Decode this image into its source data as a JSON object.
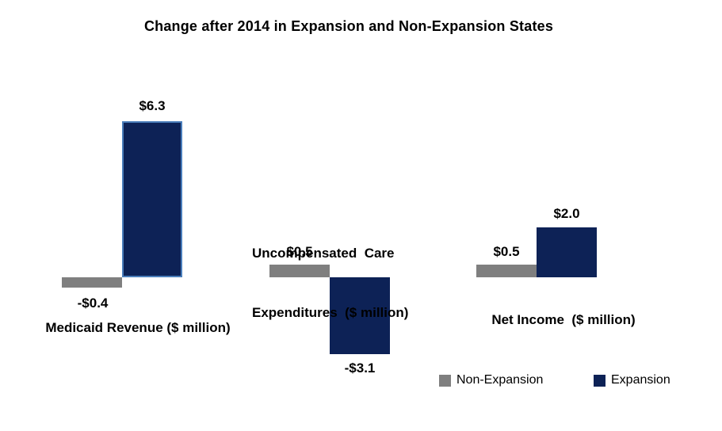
{
  "colors": {
    "background": "#FFFFFF",
    "text": "#000000",
    "non_expansion_gray": "#7F7F7F",
    "expansion_navy": "#0D2256",
    "expansion_bar_outline": "#4A7EBB"
  },
  "chart_data": {
    "type": "bar",
    "title": "Change after 2014 in Expansion and Non-Expansion States",
    "unit": "$ million",
    "baseline": 0,
    "grid": false,
    "axes_visible": false,
    "legend_position": "bottom-right",
    "series_names": [
      "Non-Expansion",
      "Expansion"
    ],
    "groups": [
      {
        "category": "Medicaid Revenue ($ million)",
        "values": [
          -0.4,
          6.3
        ],
        "labels": [
          "-$0.4",
          "$6.3"
        ]
      },
      {
        "category": "Uncompensated Care Expenditures ($ million)",
        "category_line1": "Uncompensated  Care",
        "category_line2": "Expenditures  ($ million)",
        "values": [
          0.5,
          -3.1
        ],
        "labels": [
          "$0.5",
          "-$3.1"
        ]
      },
      {
        "category": "Net Income  ($ million)",
        "values": [
          0.5,
          2.0
        ],
        "labels": [
          "$0.5",
          "$2.0"
        ]
      }
    ],
    "legend": [
      {
        "label": "Non-Expansion",
        "color": "#7F7F7F"
      },
      {
        "label": "Expansion",
        "color": "#0D2256"
      }
    ]
  }
}
